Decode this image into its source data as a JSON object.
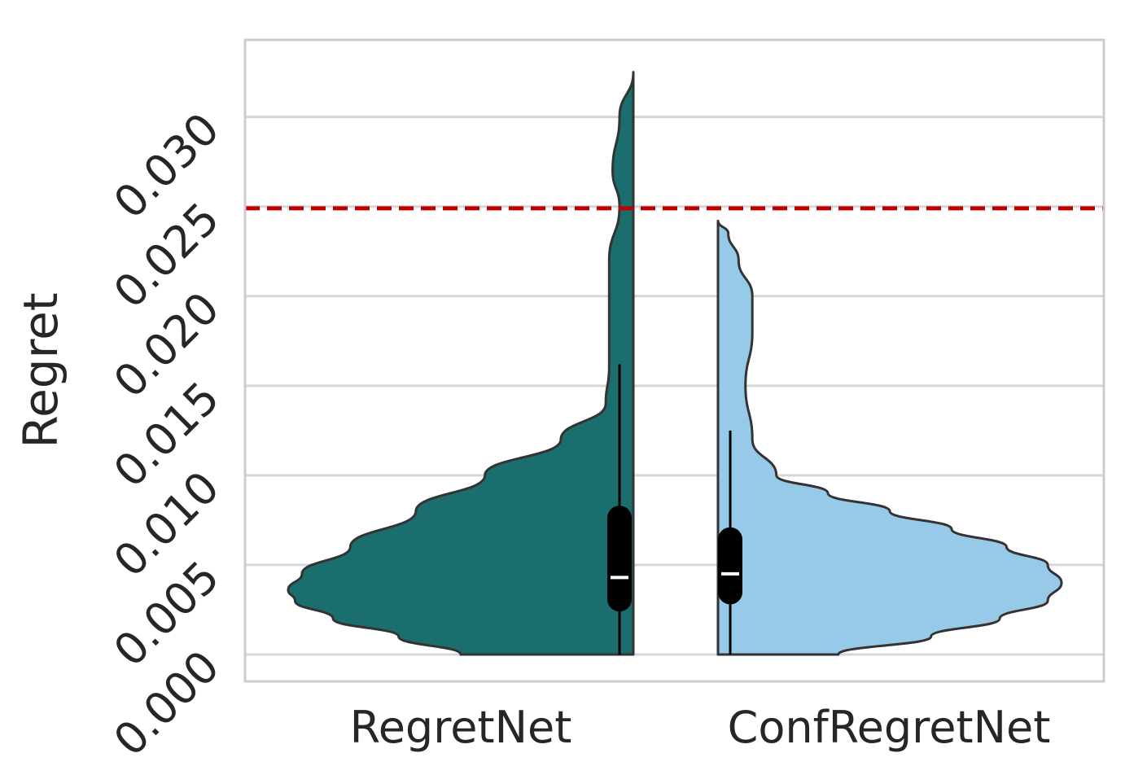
{
  "chart_data": {
    "type": "violin",
    "split": true,
    "categories": [
      "RegretNet",
      "ConfRegretNet"
    ],
    "ylabel": "Regret",
    "xlabel": "",
    "ylim": [
      -0.0015,
      0.0343
    ],
    "yticks": [
      "0.000",
      "0.005",
      "0.010",
      "0.015",
      "0.020",
      "0.025",
      "0.030"
    ],
    "ytick_values": [
      0.0,
      0.005,
      0.01,
      0.015,
      0.02,
      0.025,
      0.03
    ],
    "grid": "horizontal",
    "threshold": {
      "value": 0.0249,
      "color": "#c00000",
      "style": "dashed"
    },
    "series": [
      {
        "category": "RegretNet",
        "side": "left",
        "color": "#1b6e6e",
        "min": 0.0,
        "max": 0.0325,
        "q1": 0.0024,
        "median": 0.0043,
        "q3": 0.0083,
        "whisker_low": 0.0,
        "whisker_high": 0.0162,
        "density_profile": [
          [
            0.0,
            0.5
          ],
          [
            0.001,
            0.68
          ],
          [
            0.002,
            0.87
          ],
          [
            0.003,
            0.98
          ],
          [
            0.0036,
            1.0
          ],
          [
            0.0045,
            0.96
          ],
          [
            0.006,
            0.82
          ],
          [
            0.008,
            0.63
          ],
          [
            0.01,
            0.43
          ],
          [
            0.012,
            0.21
          ],
          [
            0.014,
            0.08
          ],
          [
            0.016,
            0.07
          ],
          [
            0.019,
            0.07
          ],
          [
            0.022,
            0.07
          ],
          [
            0.025,
            0.04
          ],
          [
            0.027,
            0.06
          ],
          [
            0.03,
            0.04
          ],
          [
            0.0325,
            0.0
          ]
        ]
      },
      {
        "category": "ConfRegretNet",
        "side": "right",
        "color": "#97c9e8",
        "min": 0.0,
        "max": 0.0242,
        "q1": 0.0028,
        "median": 0.0045,
        "q3": 0.0071,
        "whisker_low": 0.0,
        "whisker_high": 0.0125,
        "density_profile": [
          [
            0.0,
            0.35
          ],
          [
            0.001,
            0.62
          ],
          [
            0.002,
            0.82
          ],
          [
            0.003,
            0.96
          ],
          [
            0.004,
            1.0
          ],
          [
            0.005,
            0.96
          ],
          [
            0.006,
            0.84
          ],
          [
            0.007,
            0.68
          ],
          [
            0.008,
            0.5
          ],
          [
            0.009,
            0.32
          ],
          [
            0.01,
            0.17
          ],
          [
            0.012,
            0.1
          ],
          [
            0.015,
            0.08
          ],
          [
            0.018,
            0.1
          ],
          [
            0.02,
            0.1
          ],
          [
            0.022,
            0.06
          ],
          [
            0.0235,
            0.03
          ],
          [
            0.0242,
            0.0
          ]
        ]
      }
    ]
  }
}
